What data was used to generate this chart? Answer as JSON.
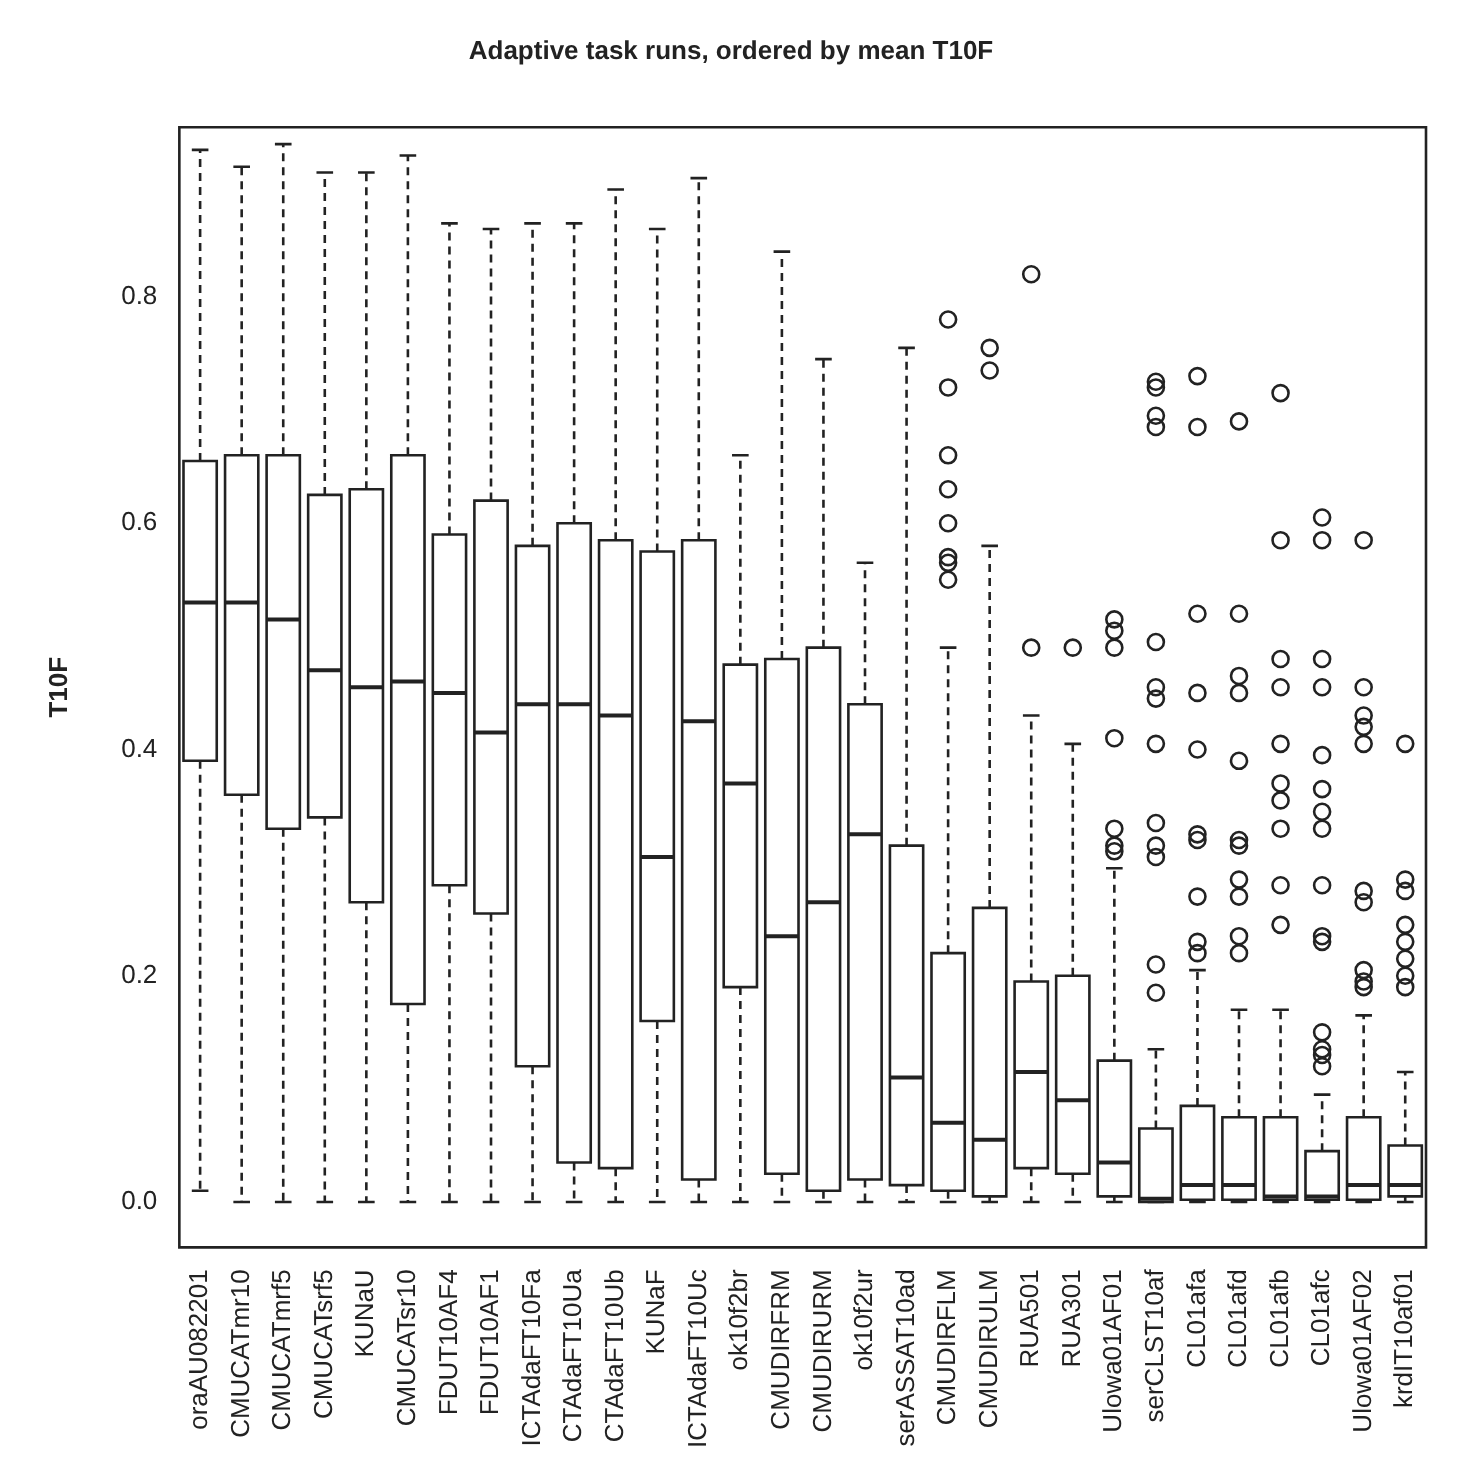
{
  "chart_data": {
    "type": "box",
    "title": "Adaptive task runs, ordered by mean T10F",
    "ylabel": "T10F",
    "categories": [
      "oraAU082201",
      "CMUCATmr10",
      "CMUCATmrf5",
      "CMUCATsrf5",
      "KUNaU",
      "CMUCATsr10",
      "FDUT10AF4",
      "FDUT10AF1",
      "ICTAdaFT10Fa",
      "CTAdaFT10Ua",
      "CTAdaFT10Ub",
      "KUNaF",
      "ICTAdaFT10Uc",
      "ok10f2br",
      "CMUDIRFRM",
      "CMUDIRURM",
      "ok10f2ur",
      "serASSAT10ad",
      "CMUDIRFLM",
      "CMUDIRULM",
      "RUA501",
      "RUA301",
      "Ulowa01AF01",
      "serCLST10af",
      "CL01afa",
      "CL01afd",
      "CL01afb",
      "CL01afc",
      "Ulowa01AF02",
      "krdIT10af01"
    ],
    "boxes": [
      {
        "low": 0.01,
        "q1": 0.39,
        "median": 0.53,
        "q3": 0.655,
        "high": 0.93
      },
      {
        "low": 0,
        "q1": 0.36,
        "median": 0.53,
        "q3": 0.66,
        "high": 0.915
      },
      {
        "low": 0,
        "q1": 0.33,
        "median": 0.515,
        "q3": 0.66,
        "high": 0.935
      },
      {
        "low": 0,
        "q1": 0.34,
        "median": 0.47,
        "q3": 0.625,
        "high": 0.91
      },
      {
        "low": 0,
        "q1": 0.265,
        "median": 0.455,
        "q3": 0.63,
        "high": 0.91
      },
      {
        "low": 0,
        "q1": 0.175,
        "median": 0.46,
        "q3": 0.66,
        "high": 0.925
      },
      {
        "low": 0,
        "q1": 0.28,
        "median": 0.45,
        "q3": 0.59,
        "high": 0.865
      },
      {
        "low": 0,
        "q1": 0.255,
        "median": 0.415,
        "q3": 0.62,
        "high": 0.86
      },
      {
        "low": 0,
        "q1": 0.12,
        "median": 0.44,
        "q3": 0.58,
        "high": 0.865
      },
      {
        "low": 0,
        "q1": 0.035,
        "median": 0.44,
        "q3": 0.6,
        "high": 0.865
      },
      {
        "low": 0,
        "q1": 0.03,
        "median": 0.43,
        "q3": 0.585,
        "high": 0.895
      },
      {
        "low": 0,
        "q1": 0.16,
        "median": 0.305,
        "q3": 0.575,
        "high": 0.86
      },
      {
        "low": 0,
        "q1": 0.02,
        "median": 0.425,
        "q3": 0.585,
        "high": 0.905
      },
      {
        "low": 0,
        "q1": 0.19,
        "median": 0.37,
        "q3": 0.475,
        "high": 0.66
      },
      {
        "low": 0,
        "q1": 0.025,
        "median": 0.235,
        "q3": 0.48,
        "high": 0.84
      },
      {
        "low": 0,
        "q1": 0.01,
        "median": 0.265,
        "q3": 0.49,
        "high": 0.745
      },
      {
        "low": 0,
        "q1": 0.02,
        "median": 0.325,
        "q3": 0.44,
        "high": 0.565
      },
      {
        "low": 0,
        "q1": 0.015,
        "median": 0.11,
        "q3": 0.315,
        "high": 0.755
      },
      {
        "low": 0,
        "q1": 0.01,
        "median": 0.07,
        "q3": 0.22,
        "high": 0.49,
        "outliers": [
          0.78,
          0.72,
          0.66,
          0.63,
          0.6,
          0.57,
          0.565,
          0.55
        ]
      },
      {
        "low": 0,
        "q1": 0.005,
        "median": 0.055,
        "q3": 0.26,
        "high": 0.58,
        "outliers": [
          0.755,
          0.735
        ]
      },
      {
        "low": 0,
        "q1": 0.03,
        "median": 0.115,
        "q3": 0.195,
        "high": 0.43,
        "outliers": [
          0.82,
          0.49
        ]
      },
      {
        "low": 0,
        "q1": 0.025,
        "median": 0.09,
        "q3": 0.2,
        "high": 0.405,
        "outliers": [
          0.49
        ]
      },
      {
        "low": 0,
        "q1": 0.005,
        "median": 0.035,
        "q3": 0.125,
        "high": 0.295,
        "outliers": [
          0.515,
          0.505,
          0.49,
          0.41,
          0.33,
          0.315,
          0.31
        ]
      },
      {
        "low": 0,
        "q1": 0,
        "median": 0.003,
        "q3": 0.065,
        "high": 0.135,
        "outliers": [
          0.725,
          0.72,
          0.695,
          0.685,
          0.495,
          0.455,
          0.445,
          0.405,
          0.335,
          0.315,
          0.305,
          0.21,
          0.185
        ]
      },
      {
        "low": 0,
        "q1": 0.002,
        "median": 0.015,
        "q3": 0.085,
        "high": 0.205,
        "outliers": [
          0.73,
          0.685,
          0.52,
          0.45,
          0.4,
          0.325,
          0.32,
          0.27,
          0.23,
          0.22
        ]
      },
      {
        "low": 0,
        "q1": 0.002,
        "median": 0.015,
        "q3": 0.075,
        "high": 0.17,
        "outliers": [
          0.69,
          0.52,
          0.465,
          0.45,
          0.39,
          0.32,
          0.315,
          0.285,
          0.27,
          0.235,
          0.22
        ]
      },
      {
        "low": 0,
        "q1": 0.002,
        "median": 0.005,
        "q3": 0.075,
        "high": 0.17,
        "outliers": [
          0.715,
          0.585,
          0.48,
          0.455,
          0.405,
          0.37,
          0.355,
          0.33,
          0.28,
          0.245
        ]
      },
      {
        "low": 0,
        "q1": 0.002,
        "median": 0.005,
        "q3": 0.045,
        "high": 0.095,
        "outliers": [
          0.605,
          0.585,
          0.48,
          0.455,
          0.395,
          0.365,
          0.345,
          0.33,
          0.28,
          0.235,
          0.23,
          0.15,
          0.135,
          0.13,
          0.12
        ]
      },
      {
        "low": 0,
        "q1": 0.002,
        "median": 0.015,
        "q3": 0.075,
        "high": 0.165,
        "outliers": [
          0.585,
          0.455,
          0.43,
          0.42,
          0.405,
          0.275,
          0.265,
          0.205,
          0.195,
          0.19
        ]
      },
      {
        "low": 0,
        "q1": 0.005,
        "median": 0.015,
        "q3": 0.05,
        "high": 0.115,
        "outliers": [
          0.405,
          0.285,
          0.275,
          0.245,
          0.23,
          0.215,
          0.2,
          0.19
        ]
      }
    ],
    "ylim": [
      -0.04,
      0.95
    ],
    "yticks": [
      {
        "value": 0,
        "label": "0.0"
      },
      0.2,
      0.4,
      0.6,
      0.8
    ],
    "marker": "circle",
    "grid": false
  }
}
